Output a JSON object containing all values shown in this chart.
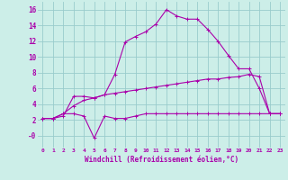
{
  "bg_color": "#cceee8",
  "line_color": "#aa00aa",
  "grid_color": "#99cccc",
  "xlabel": "Windchill (Refroidissement éolien,°C)",
  "xlim": [
    -0.5,
    23.5
  ],
  "ylim": [
    -1.5,
    17.0
  ],
  "yticks": [
    0,
    2,
    4,
    6,
    8,
    10,
    12,
    14,
    16
  ],
  "ytick_labels": [
    "-0",
    "2",
    "4",
    "6",
    "8",
    "10",
    "12",
    "14",
    "16"
  ],
  "xticks": [
    0,
    1,
    2,
    3,
    4,
    5,
    6,
    7,
    8,
    9,
    10,
    11,
    12,
    13,
    14,
    15,
    16,
    17,
    18,
    19,
    20,
    21,
    22,
    23
  ],
  "curve1_x": [
    0,
    1,
    2,
    3,
    4,
    5,
    6,
    7,
    8,
    9,
    10,
    11,
    12,
    13,
    14,
    15,
    16,
    17,
    18,
    19,
    20,
    21,
    22,
    23
  ],
  "curve1_y": [
    2.2,
    2.2,
    2.5,
    5.0,
    5.0,
    4.8,
    5.2,
    7.8,
    11.9,
    12.6,
    13.2,
    14.2,
    16.0,
    15.2,
    14.8,
    14.8,
    13.5,
    12.0,
    10.2,
    8.5,
    8.5,
    6.0,
    2.8,
    2.8
  ],
  "curve2_x": [
    0,
    1,
    2,
    3,
    4,
    5,
    6,
    7,
    8,
    9,
    10,
    11,
    12,
    13,
    14,
    15,
    16,
    17,
    18,
    19,
    20,
    21,
    22,
    23
  ],
  "curve2_y": [
    2.2,
    2.2,
    2.8,
    2.8,
    2.5,
    -0.3,
    2.5,
    2.2,
    2.2,
    2.5,
    2.8,
    2.8,
    2.8,
    2.8,
    2.8,
    2.8,
    2.8,
    2.8,
    2.8,
    2.8,
    2.8,
    2.8,
    2.8,
    2.8
  ],
  "curve3_x": [
    0,
    1,
    2,
    3,
    4,
    5,
    6,
    7,
    8,
    9,
    10,
    11,
    12,
    13,
    14,
    15,
    16,
    17,
    18,
    19,
    20,
    21,
    22,
    23
  ],
  "curve3_y": [
    2.2,
    2.2,
    2.8,
    3.8,
    4.5,
    4.8,
    5.2,
    5.4,
    5.6,
    5.8,
    6.0,
    6.2,
    6.4,
    6.6,
    6.8,
    7.0,
    7.2,
    7.2,
    7.4,
    7.5,
    7.8,
    7.5,
    2.8,
    2.8
  ]
}
